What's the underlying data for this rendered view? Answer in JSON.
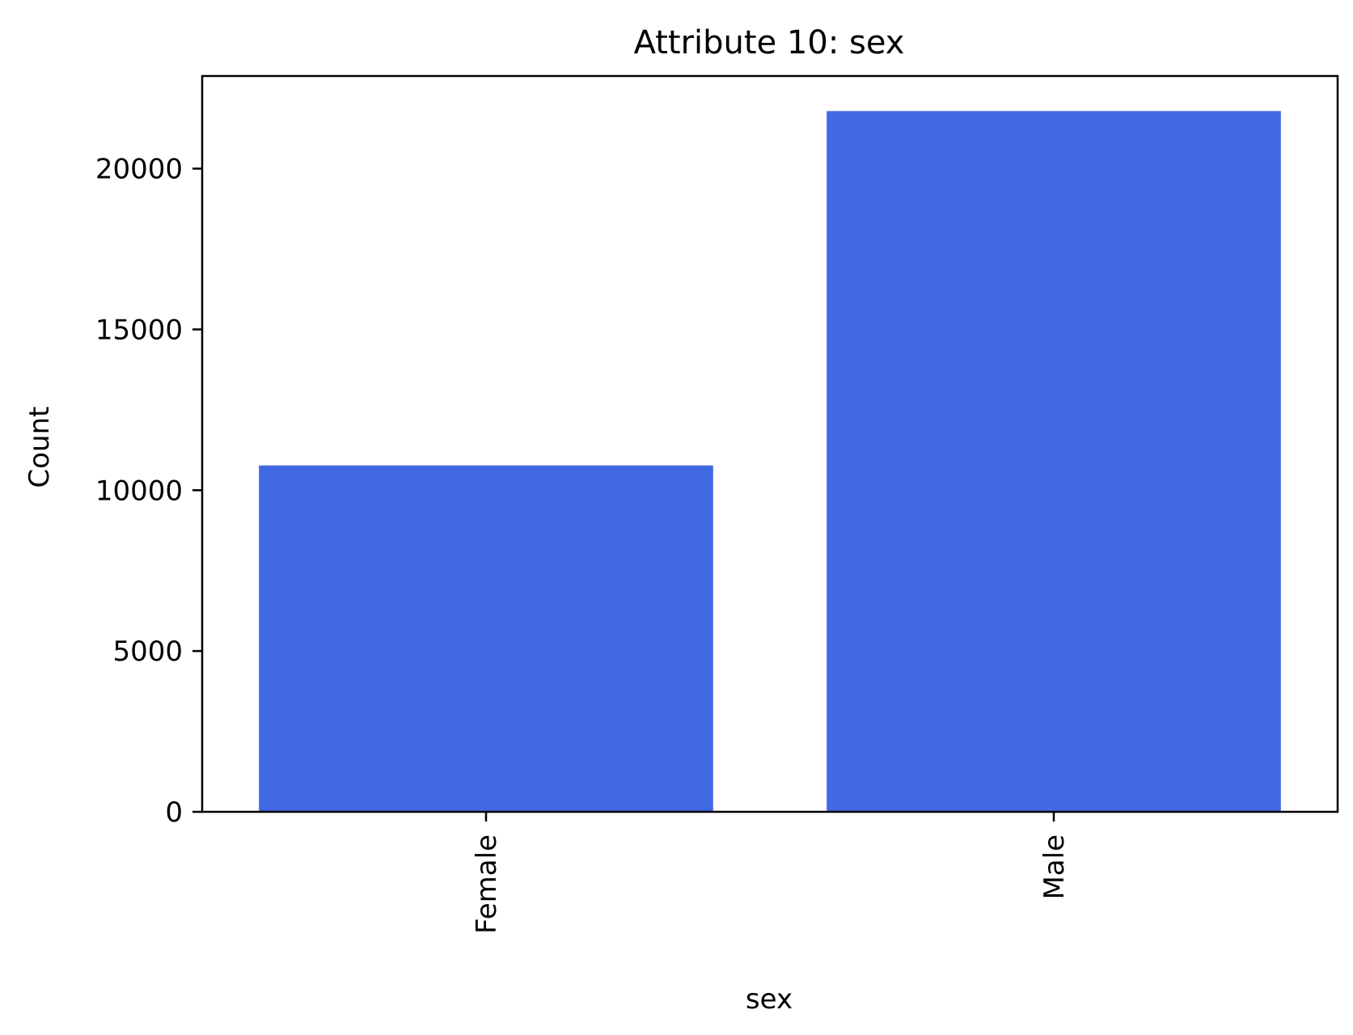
{
  "chart_data": {
    "type": "bar",
    "title": "Attribute 10: sex",
    "xlabel": "sex",
    "ylabel": "Count",
    "categories": [
      "Female",
      "Male"
    ],
    "values": [
      10771,
      21790
    ],
    "ylim": [
      0,
      22880
    ],
    "yticks": [
      0,
      5000,
      10000,
      15000,
      20000
    ],
    "ytick_labels": [
      "0",
      "5000",
      "10000",
      "15000",
      "20000"
    ],
    "bar_color": "#4169e1",
    "grid": false,
    "legend": "none",
    "xtick_rotation": "vertical"
  }
}
